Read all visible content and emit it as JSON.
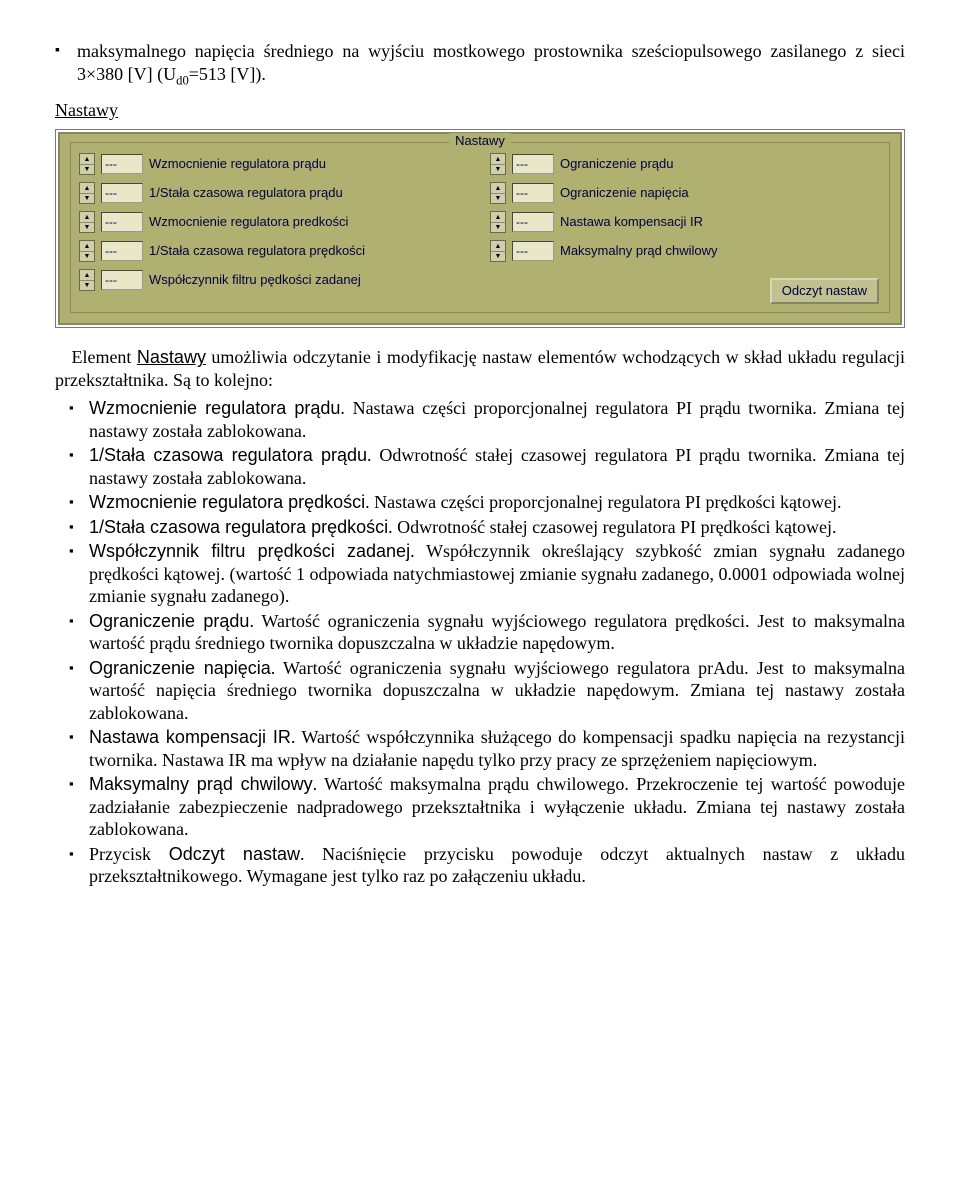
{
  "top": {
    "bullet1_a": "maksymalnego napięcia średniego na wyjściu mostkowego prostownika sześciopulsowego zasilanego z sieci 3×380 [V] (U",
    "bullet1_sub": "d0",
    "bullet1_b": "=513 [V])."
  },
  "heading": "Nastawy",
  "panel": {
    "title": "Nastawy",
    "left": [
      {
        "val": "---",
        "label": "Wzmocnienie regulatora prądu"
      },
      {
        "val": "---",
        "label": "1/Stała czasowa regulatora prądu"
      },
      {
        "val": "---",
        "label": "Wzmocnienie regulatora predkości"
      },
      {
        "val": "---",
        "label": "1/Stała czasowa regulatora prędkości"
      },
      {
        "val": "---",
        "label": "Współczynnik filtru pędkości zadanej"
      }
    ],
    "right": [
      {
        "val": "---",
        "label": "Ograniczenie prądu"
      },
      {
        "val": "---",
        "label": "Ograniczenie napięcia"
      },
      {
        "val": "---",
        "label": "Nastawa kompensacji IR"
      },
      {
        "val": "---",
        "label": "Maksymalny prąd chwilowy"
      }
    ],
    "button": "Odczyt nastaw"
  },
  "intro": {
    "a": "Element ",
    "b": "Nastawy",
    "c": " umożliwia odczytanie i modyfikację nastaw elementów wchodzących w skład układu regulacji przekształtnika. Są to kolejno:"
  },
  "items": [
    {
      "term": "Wzmocnienie regulatora prądu",
      "rest": ". Nastawa części proporcjonalnej regulatora PI prądu twornika. Zmiana tej nastawy została zablokowana."
    },
    {
      "term": "1/Stała czasowa regulatora prądu",
      "rest": ". Odwrotność stałej czasowej regulatora PI prądu twornika. Zmiana tej nastawy została zablokowana."
    },
    {
      "term": "Wzmocnienie regulatora prędkości",
      "rest": ". Nastawa części proporcjonalnej regulatora PI prędkości kątowej."
    },
    {
      "term": "1/Stała czasowa regulatora prędkości",
      "rest": ". Odwrotność stałej czasowej regulatora PI prędkości kątowej."
    },
    {
      "term": "Współczynnik filtru prędkości zadanej",
      "rest": ". Współczynnik określający szybkość zmian sygnału zadanego prędkości kątowej. (wartość 1 odpowiada natychmiastowej zmianie sygnału zadanego, 0.0001 odpowiada wolnej zmianie sygnału zadanego)."
    },
    {
      "term": "Ograniczenie prądu",
      "rest": ". Wartość ograniczenia sygnału wyjściowego regulatora prędkości. Jest to maksymalna wartość prądu średniego twornika dopuszczalna w układzie napędowym."
    },
    {
      "term": "Ograniczenie napięcia",
      "rest": ". Wartość ograniczenia sygnału wyjściowego regulatora prAdu. Jest to maksymalna wartość napięcia średniego twornika dopuszczalna w układzie napędowym. Zmiana tej nastawy została zablokowana."
    },
    {
      "term": "Nastawa kompensacji IR",
      "rest": ". Wartość współczynnika służącego do kompensacji spadku napięcia na rezystancji twornika. Nastawa IR ma wpływ na działanie napędu tylko przy pracy ze sprzężeniem napięciowym."
    },
    {
      "term": "Maksymalny prąd chwilowy",
      "rest": ". Wartość maksymalna prądu chwilowego. Przekroczenie tej wartość powoduje zadziałanie zabezpieczenie nadpradowego przekształtnika i wyłączenie układu. Zmiana tej nastawy została zablokowana."
    },
    {
      "term_prefix": "Przycisk ",
      "term": "Odczyt nastaw",
      "rest": ". Naciśnięcie przycisku powoduje odczyt aktualnych nastaw z układu przekształtnikowego. Wymagane jest tylko raz po załączeniu układu."
    }
  ]
}
